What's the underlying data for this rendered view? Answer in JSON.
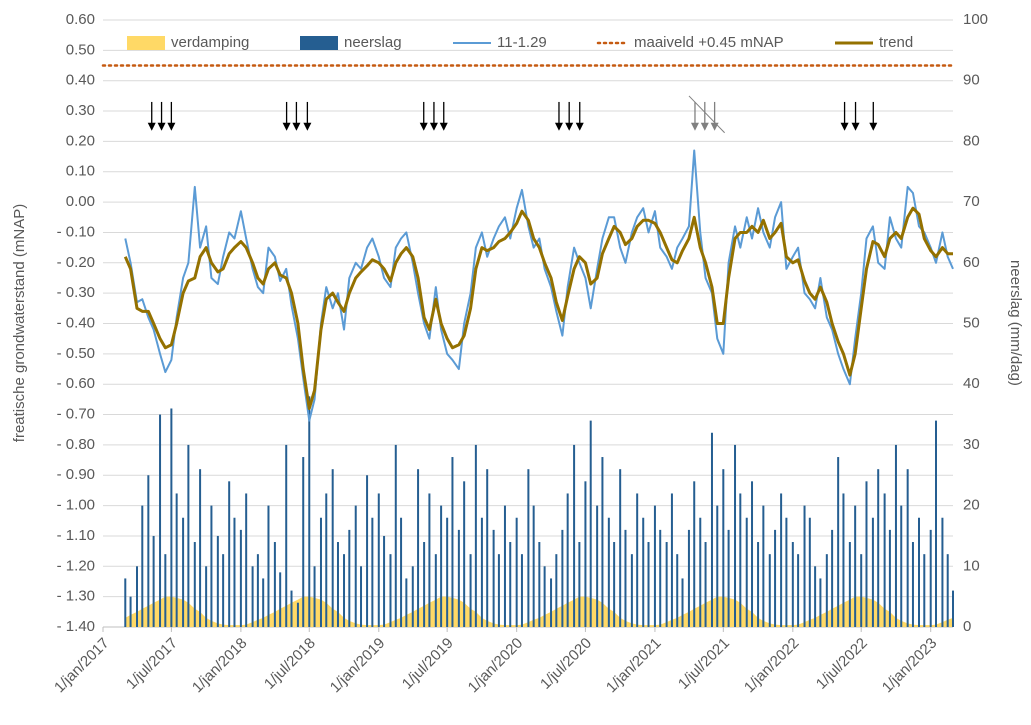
{
  "chart_data": {
    "type": "timeseries",
    "y_label": "freatische grondwaterstand (mNAP)",
    "y2_label": "neerslag (mm/dag)",
    "xlim": [
      "2017-01-01",
      "2023-03-01"
    ],
    "xticks": [
      {
        "value": "2017-01-01",
        "label": "1/jan/2017"
      },
      {
        "value": "2017-07-01",
        "label": "1/jul/2017"
      },
      {
        "value": "2018-01-01",
        "label": "1/jan/2018"
      },
      {
        "value": "2018-07-01",
        "label": "1/jul/2018"
      },
      {
        "value": "2019-01-01",
        "label": "1/jan/2019"
      },
      {
        "value": "2019-07-01",
        "label": "1/jul/2019"
      },
      {
        "value": "2020-01-01",
        "label": "1/jan/2020"
      },
      {
        "value": "2020-07-01",
        "label": "1/jul/2020"
      },
      {
        "value": "2021-01-01",
        "label": "1/jan/2021"
      },
      {
        "value": "2021-07-01",
        "label": "1/jul/2021"
      },
      {
        "value": "2022-01-01",
        "label": "1/jan/2022"
      },
      {
        "value": "2022-07-01",
        "label": "1/jul/2022"
      },
      {
        "value": "2023-01-01",
        "label": "1/jan/2023"
      }
    ],
    "ylim": [
      -1.4,
      0.6
    ],
    "yticks": [
      {
        "value": 0.6,
        "label": "0.60"
      },
      {
        "value": 0.5,
        "label": "0.50"
      },
      {
        "value": 0.4,
        "label": "0.40"
      },
      {
        "value": 0.3,
        "label": "0.30"
      },
      {
        "value": 0.2,
        "label": "0.20"
      },
      {
        "value": 0.1,
        "label": "0.10"
      },
      {
        "value": 0,
        "label": "0.00"
      },
      {
        "value": -0.1,
        "label": "- 0.10"
      },
      {
        "value": -0.2,
        "label": "- 0.20"
      },
      {
        "value": -0.3,
        "label": "- 0.30"
      },
      {
        "value": -0.4,
        "label": "- 0.40"
      },
      {
        "value": -0.5,
        "label": "- 0.50"
      },
      {
        "value": -0.6,
        "label": "- 0.60"
      },
      {
        "value": -0.7,
        "label": "- 0.70"
      },
      {
        "value": -0.8,
        "label": "- 0.80"
      },
      {
        "value": -0.9,
        "label": "- 0.90"
      },
      {
        "value": -1.0,
        "label": "- 1.00"
      },
      {
        "value": -1.1,
        "label": "- 1.10"
      },
      {
        "value": -1.2,
        "label": "- 1.20"
      },
      {
        "value": -1.3,
        "label": "- 1.30"
      },
      {
        "value": -1.4,
        "label": "- 1.40"
      }
    ],
    "y2lim": [
      0,
      100
    ],
    "y2ticks": [
      0,
      10,
      20,
      30,
      40,
      50,
      60,
      70,
      80,
      90,
      100
    ],
    "grid": true,
    "legend": "top",
    "x": [
      "2017-03-01",
      "2017-03-15",
      "2017-04-01",
      "2017-04-15",
      "2017-05-01",
      "2017-05-15",
      "2017-06-01",
      "2017-06-15",
      "2017-07-01",
      "2017-07-15",
      "2017-08-01",
      "2017-08-15",
      "2017-09-01",
      "2017-09-15",
      "2017-10-01",
      "2017-10-15",
      "2017-11-01",
      "2017-11-15",
      "2017-12-01",
      "2017-12-15",
      "2018-01-01",
      "2018-01-15",
      "2018-02-01",
      "2018-02-15",
      "2018-03-01",
      "2018-03-15",
      "2018-04-01",
      "2018-04-15",
      "2018-05-01",
      "2018-05-15",
      "2018-06-01",
      "2018-06-15",
      "2018-07-01",
      "2018-07-15",
      "2018-08-01",
      "2018-08-15",
      "2018-09-01",
      "2018-09-15",
      "2018-10-01",
      "2018-10-15",
      "2018-11-01",
      "2018-11-15",
      "2018-12-01",
      "2018-12-15",
      "2019-01-01",
      "2019-01-15",
      "2019-02-01",
      "2019-02-15",
      "2019-03-01",
      "2019-03-15",
      "2019-04-01",
      "2019-04-15",
      "2019-05-01",
      "2019-05-15",
      "2019-06-01",
      "2019-06-15",
      "2019-07-01",
      "2019-07-15",
      "2019-08-01",
      "2019-08-15",
      "2019-09-01",
      "2019-09-15",
      "2019-10-01",
      "2019-10-15",
      "2019-11-01",
      "2019-11-15",
      "2019-12-01",
      "2019-12-15",
      "2020-01-01",
      "2020-01-15",
      "2020-02-01",
      "2020-02-15",
      "2020-03-01",
      "2020-03-15",
      "2020-04-01",
      "2020-04-15",
      "2020-05-01",
      "2020-05-15",
      "2020-06-01",
      "2020-06-15",
      "2020-07-01",
      "2020-07-15",
      "2020-08-01",
      "2020-08-15",
      "2020-09-01",
      "2020-09-15",
      "2020-10-01",
      "2020-10-15",
      "2020-11-01",
      "2020-11-15",
      "2020-12-01",
      "2020-12-15",
      "2021-01-01",
      "2021-01-15",
      "2021-02-01",
      "2021-02-15",
      "2021-03-01",
      "2021-03-15",
      "2021-04-01",
      "2021-04-15",
      "2021-05-01",
      "2021-05-15",
      "2021-06-01",
      "2021-06-15",
      "2021-07-01",
      "2021-07-15",
      "2021-08-01",
      "2021-08-15",
      "2021-09-01",
      "2021-09-15",
      "2021-10-01",
      "2021-10-15",
      "2021-11-01",
      "2021-11-15",
      "2021-12-01",
      "2021-12-15",
      "2022-01-01",
      "2022-01-15",
      "2022-02-01",
      "2022-02-15",
      "2022-03-01",
      "2022-03-15",
      "2022-04-01",
      "2022-04-15",
      "2022-05-01",
      "2022-05-15",
      "2022-06-01",
      "2022-06-15",
      "2022-07-01",
      "2022-07-15",
      "2022-08-01",
      "2022-08-15",
      "2022-09-01",
      "2022-09-15",
      "2022-10-01",
      "2022-10-15",
      "2022-11-01",
      "2022-11-15",
      "2022-12-01",
      "2022-12-15",
      "2023-01-01",
      "2023-01-15",
      "2023-02-01",
      "2023-02-15",
      "2023-03-01"
    ],
    "series": [
      {
        "name": "verdamping",
        "type": "area",
        "axis": "y2",
        "color": "#ffd966",
        "values": [
          1.5,
          2,
          2.5,
          3,
          3.5,
          4,
          4.5,
          5,
          5,
          4.8,
          4.5,
          4,
          3,
          2.5,
          1.5,
          1,
          0.6,
          0.4,
          0.3,
          0.3,
          0.3,
          0.4,
          0.8,
          1.2,
          1.5,
          2,
          2.5,
          3,
          3.5,
          4,
          4.5,
          5,
          5,
          4.8,
          4.5,
          4,
          3,
          2.5,
          1.5,
          1,
          0.6,
          0.4,
          0.3,
          0.3,
          0.3,
          0.4,
          0.8,
          1.2,
          1.5,
          2,
          2.5,
          3,
          3.5,
          4,
          4.5,
          5,
          5,
          4.8,
          4.5,
          4,
          3,
          2.5,
          1.5,
          1,
          0.6,
          0.4,
          0.3,
          0.3,
          0.3,
          0.4,
          0.8,
          1.2,
          1.5,
          2,
          2.5,
          3,
          3.5,
          4,
          4.5,
          5,
          5,
          4.8,
          4.5,
          4,
          3,
          2.5,
          1.5,
          1,
          0.6,
          0.4,
          0.3,
          0.3,
          0.3,
          0.4,
          0.8,
          1.2,
          1.5,
          2,
          2.5,
          3,
          3.5,
          4,
          4.5,
          5,
          5,
          4.8,
          4.5,
          4,
          3,
          2.5,
          1.5,
          1,
          0.6,
          0.4,
          0.3,
          0.3,
          0.3,
          0.4,
          0.8,
          1.2,
          1.5,
          2,
          2.5,
          3,
          3.5,
          4,
          4.5,
          5,
          5,
          4.8,
          4.5,
          4,
          3,
          2.5,
          1.5,
          1,
          0.6,
          0.4,
          0.3,
          0.3,
          0.3,
          0.4,
          0.8,
          1.2,
          1.5
        ]
      },
      {
        "name": "neerslag",
        "type": "bar",
        "axis": "y2",
        "color": "#255e91",
        "values": [
          8,
          5,
          10,
          20,
          25,
          15,
          35,
          12,
          36,
          22,
          18,
          30,
          14,
          26,
          10,
          20,
          15,
          12,
          24,
          18,
          16,
          22,
          10,
          12,
          8,
          20,
          14,
          9,
          30,
          6,
          4,
          28,
          38,
          10,
          18,
          22,
          26,
          14,
          12,
          16,
          20,
          10,
          25,
          18,
          22,
          15,
          12,
          30,
          18,
          8,
          10,
          26,
          14,
          22,
          12,
          20,
          18,
          28,
          16,
          24,
          12,
          30,
          18,
          26,
          16,
          12,
          20,
          14,
          18,
          12,
          26,
          20,
          14,
          10,
          8,
          12,
          16,
          22,
          30,
          14,
          24,
          34,
          20,
          28,
          18,
          14,
          26,
          16,
          12,
          22,
          18,
          14,
          20,
          16,
          14,
          22,
          12,
          8,
          16,
          24,
          18,
          14,
          32,
          20,
          26,
          16,
          30,
          22,
          18,
          24,
          14,
          20,
          12,
          16,
          22,
          18,
          14,
          12,
          20,
          18,
          10,
          8,
          12,
          16,
          28,
          22,
          14,
          20,
          12,
          24,
          18,
          26,
          22,
          16,
          30,
          20,
          26,
          14,
          18,
          12,
          16,
          34,
          18,
          12,
          6
        ]
      },
      {
        "name": "11-1.29",
        "type": "line",
        "color": "#5b9bd5",
        "width": 2,
        "values": [
          -0.12,
          -0.2,
          -0.33,
          -0.32,
          -0.38,
          -0.42,
          -0.5,
          -0.56,
          -0.52,
          -0.38,
          -0.25,
          -0.2,
          0.05,
          -0.15,
          -0.08,
          -0.25,
          -0.27,
          -0.18,
          -0.1,
          -0.12,
          -0.03,
          -0.12,
          -0.22,
          -0.28,
          -0.3,
          -0.15,
          -0.18,
          -0.26,
          -0.22,
          -0.34,
          -0.45,
          -0.58,
          -0.72,
          -0.65,
          -0.4,
          -0.28,
          -0.35,
          -0.3,
          -0.42,
          -0.25,
          -0.2,
          -0.22,
          -0.15,
          -0.12,
          -0.18,
          -0.25,
          -0.28,
          -0.15,
          -0.12,
          -0.1,
          -0.2,
          -0.3,
          -0.4,
          -0.45,
          -0.28,
          -0.42,
          -0.5,
          -0.52,
          -0.55,
          -0.4,
          -0.3,
          -0.15,
          -0.1,
          -0.18,
          -0.12,
          -0.08,
          -0.05,
          -0.12,
          -0.02,
          0.04,
          -0.08,
          -0.15,
          -0.12,
          -0.22,
          -0.28,
          -0.36,
          -0.44,
          -0.28,
          -0.15,
          -0.2,
          -0.25,
          -0.35,
          -0.22,
          -0.12,
          -0.05,
          -0.05,
          -0.15,
          -0.2,
          -0.1,
          -0.05,
          -0.02,
          -0.1,
          -0.03,
          -0.15,
          -0.18,
          -0.22,
          -0.15,
          -0.12,
          -0.08,
          0.17,
          -0.1,
          -0.25,
          -0.3,
          -0.45,
          -0.5,
          -0.2,
          -0.08,
          -0.15,
          -0.05,
          -0.12,
          -0.02,
          -0.1,
          -0.15,
          -0.05,
          0.0,
          -0.22,
          -0.18,
          -0.15,
          -0.3,
          -0.32,
          -0.35,
          -0.25,
          -0.38,
          -0.42,
          -0.5,
          -0.55,
          -0.6,
          -0.45,
          -0.3,
          -0.12,
          -0.08,
          -0.2,
          -0.22,
          -0.05,
          -0.12,
          -0.15,
          0.05,
          0.03,
          -0.08,
          -0.1,
          -0.15,
          -0.2,
          -0.1,
          -0.18,
          -0.22
        ]
      },
      {
        "name": "maaiveld +0.45 mNAP",
        "type": "hline",
        "color": "#c55a11",
        "value": 0.45
      },
      {
        "name": "trend",
        "type": "line",
        "color": "#947100",
        "width": 3,
        "values": [
          -0.18,
          -0.22,
          -0.35,
          -0.36,
          -0.36,
          -0.4,
          -0.45,
          -0.48,
          -0.47,
          -0.4,
          -0.3,
          -0.26,
          -0.25,
          -0.18,
          -0.15,
          -0.2,
          -0.23,
          -0.22,
          -0.17,
          -0.15,
          -0.13,
          -0.15,
          -0.2,
          -0.25,
          -0.27,
          -0.22,
          -0.2,
          -0.24,
          -0.25,
          -0.3,
          -0.4,
          -0.55,
          -0.68,
          -0.62,
          -0.42,
          -0.32,
          -0.3,
          -0.33,
          -0.36,
          -0.3,
          -0.25,
          -0.23,
          -0.21,
          -0.19,
          -0.2,
          -0.22,
          -0.26,
          -0.2,
          -0.17,
          -0.15,
          -0.18,
          -0.25,
          -0.38,
          -0.42,
          -0.32,
          -0.4,
          -0.45,
          -0.48,
          -0.47,
          -0.44,
          -0.35,
          -0.22,
          -0.15,
          -0.16,
          -0.15,
          -0.13,
          -0.12,
          -0.1,
          -0.07,
          -0.03,
          -0.06,
          -0.12,
          -0.15,
          -0.2,
          -0.25,
          -0.33,
          -0.39,
          -0.31,
          -0.22,
          -0.18,
          -0.2,
          -0.27,
          -0.25,
          -0.17,
          -0.12,
          -0.08,
          -0.1,
          -0.14,
          -0.12,
          -0.08,
          -0.06,
          -0.06,
          -0.07,
          -0.1,
          -0.15,
          -0.19,
          -0.2,
          -0.16,
          -0.12,
          -0.05,
          -0.15,
          -0.2,
          -0.28,
          -0.4,
          -0.4,
          -0.25,
          -0.12,
          -0.1,
          -0.1,
          -0.08,
          -0.1,
          -0.06,
          -0.12,
          -0.1,
          -0.07,
          -0.18,
          -0.2,
          -0.19,
          -0.26,
          -0.3,
          -0.32,
          -0.28,
          -0.33,
          -0.4,
          -0.46,
          -0.5,
          -0.57,
          -0.5,
          -0.35,
          -0.22,
          -0.13,
          -0.14,
          -0.18,
          -0.12,
          -0.1,
          -0.12,
          -0.05,
          -0.02,
          -0.04,
          -0.12,
          -0.16,
          -0.18,
          -0.15,
          -0.17,
          -0.17
        ]
      }
    ],
    "arrows": [
      {
        "x": "2017-05-10",
        "color": "#000000"
      },
      {
        "x": "2017-06-05",
        "color": "#000000"
      },
      {
        "x": "2017-07-01",
        "color": "#000000"
      },
      {
        "x": "2018-05-02",
        "color": "#000000"
      },
      {
        "x": "2018-05-28",
        "color": "#000000"
      },
      {
        "x": "2018-06-26",
        "color": "#000000"
      },
      {
        "x": "2019-04-30",
        "color": "#000000"
      },
      {
        "x": "2019-05-27",
        "color": "#000000"
      },
      {
        "x": "2019-06-22",
        "color": "#000000"
      },
      {
        "x": "2020-04-22",
        "color": "#000000"
      },
      {
        "x": "2020-05-19",
        "color": "#000000"
      },
      {
        "x": "2020-06-16",
        "color": "#000000"
      },
      {
        "x": "2021-04-17",
        "color": "#808080",
        "struck": true
      },
      {
        "x": "2021-05-13",
        "color": "#808080",
        "struck": true
      },
      {
        "x": "2021-06-08",
        "color": "#808080",
        "struck": true
      },
      {
        "x": "2022-05-18",
        "color": "#000000"
      },
      {
        "x": "2022-06-16",
        "color": "#000000"
      },
      {
        "x": "2022-08-02",
        "color": "#000000"
      }
    ]
  }
}
